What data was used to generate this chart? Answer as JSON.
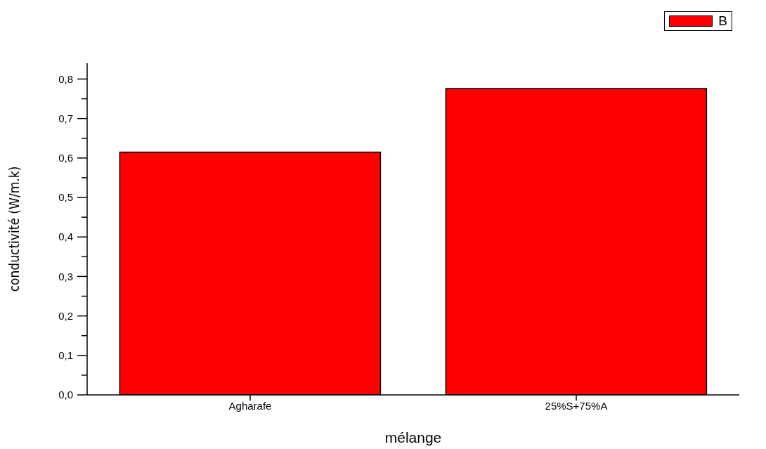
{
  "chart_data": {
    "type": "bar",
    "xlabel": "mélange",
    "ylabel": "conductivité (W/m.k)",
    "categories": [
      "Agharafe",
      "25%S+75%A"
    ],
    "series": [
      {
        "name": "B",
        "color": "#ff0000",
        "values": [
          0.615,
          0.776
        ]
      }
    ],
    "ylim": [
      0,
      0.84
    ],
    "yticks": [
      {
        "value": 0,
        "label": "0,0"
      },
      {
        "value": 0.05,
        "label": null
      },
      {
        "value": 0.1,
        "label": "0,1"
      },
      {
        "value": 0.15,
        "label": null
      },
      {
        "value": 0.2,
        "label": "0,2"
      },
      {
        "value": 0.25,
        "label": null
      },
      {
        "value": 0.3,
        "label": "0,3"
      },
      {
        "value": 0.35,
        "label": null
      },
      {
        "value": 0.4,
        "label": "0,4"
      },
      {
        "value": 0.45,
        "label": null
      },
      {
        "value": 0.5,
        "label": "0,5"
      },
      {
        "value": 0.55,
        "label": null
      },
      {
        "value": 0.6,
        "label": "0,6"
      },
      {
        "value": 0.65,
        "label": null
      },
      {
        "value": 0.7,
        "label": "0,7"
      },
      {
        "value": 0.75,
        "label": null
      },
      {
        "value": 0.8,
        "label": "0,8"
      }
    ],
    "grid": false,
    "legend": "top right"
  }
}
